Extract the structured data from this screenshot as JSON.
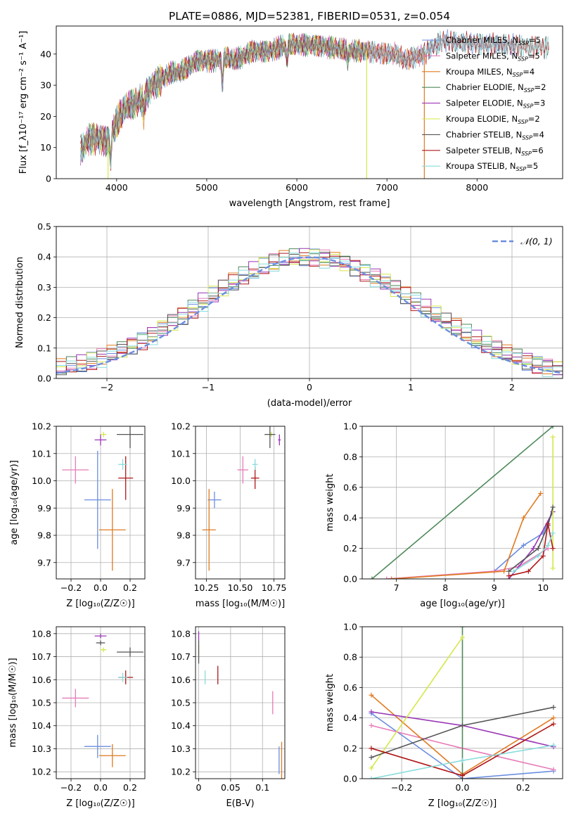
{
  "title": "PLATE=0886, MJD=52381, FIBERID=0531, z=0.054",
  "colors": [
    "#6b8ee0",
    "#e87bb8",
    "#e07a20",
    "#4f8a5b",
    "#9a36b5",
    "#d4e84a",
    "#555555",
    "#b01818",
    "#88dcdc"
  ],
  "chart_data": [
    {
      "id": "spectrum",
      "type": "line",
      "xlabel": "wavelength [Angstrom, rest frame]",
      "ylabel": "Flux [f_λ10⁻¹⁷ erg cm⁻² s⁻¹ A⁻¹]",
      "xlim": [
        3330,
        8950
      ],
      "ylim": [
        0,
        49
      ],
      "xticks": [
        4000,
        5000,
        6000,
        7000,
        8000
      ],
      "yticks": [
        0,
        10,
        20,
        30,
        40
      ],
      "legend_position": "upper-right",
      "continuum_x": [
        3600,
        3700,
        3800,
        3900,
        4000,
        4100,
        4200,
        4300,
        4400,
        4500,
        4600,
        4700,
        4800,
        4900,
        5000,
        5100,
        5200,
        5300,
        5400,
        5500,
        5600,
        5700,
        5800,
        5900,
        6000,
        6200,
        6400,
        6600,
        6800,
        7000,
        7100,
        7200,
        7300,
        7400,
        7500,
        7600
      ],
      "continuum_y": [
        9,
        13,
        13,
        12,
        18,
        23,
        24,
        26,
        30,
        32,
        34,
        34,
        36,
        38,
        38,
        38,
        39,
        38,
        39,
        41,
        41,
        41,
        42,
        43,
        43,
        43,
        42,
        41,
        41,
        40,
        40,
        38,
        39,
        40,
        42,
        44
      ],
      "absorption_dips": [
        {
          "x": 3933,
          "depth": 8
        },
        {
          "x": 4300,
          "depth": 5
        },
        {
          "x": 5175,
          "depth": 8
        },
        {
          "x": 5890,
          "depth": 5
        },
        {
          "x": 6563,
          "depth": 3
        }
      ],
      "drop_lines": [
        {
          "x": 3905,
          "series": "Kroupa ELODIE, N_SSP=2",
          "color": "#d4e84a"
        },
        {
          "x": 6775,
          "series": "Kroupa ELODIE, N_SSP=2",
          "color": "#d4e84a"
        },
        {
          "x": 7415,
          "series": "Kroupa MILES, N_SSP=4",
          "color": "#e07a20"
        }
      ],
      "series": [
        {
          "name": "Chabrier MILES, N_SSP=5",
          "color": "#6b8ee0",
          "xmax": 8450
        },
        {
          "name": "Salpeter MILES, N_SSP=5",
          "color": "#e87bb8",
          "xmax": 7400
        },
        {
          "name": "Kroupa MILES, N_SSP=4",
          "color": "#e07a20",
          "xmax": 7400
        },
        {
          "name": "Chabrier ELODIE, N_SSP=2",
          "color": "#4f8a5b",
          "xmax": 6780
        },
        {
          "name": "Salpeter ELODIE, N_SSP=3",
          "color": "#9a36b5",
          "xmax": 6780
        },
        {
          "name": "Kroupa ELODIE, N_SSP=2",
          "color": "#d4e84a",
          "xmax": 6780
        },
        {
          "name": "Chabrier STELIB, N_SSP=4",
          "color": "#555555",
          "xmax": 8800
        },
        {
          "name": "Salpeter STELIB, N_SSP=6",
          "color": "#b01818",
          "xmax": 8800
        },
        {
          "name": "Kroupa STELIB, N_SSP=5",
          "color": "#88dcdc",
          "xmax": 8800
        }
      ]
    },
    {
      "id": "residuals",
      "type": "line",
      "xlabel": "(data-model)/error",
      "ylabel": "Normed distribution",
      "xlim": [
        -2.5,
        2.5
      ],
      "ylim": [
        0,
        0.5
      ],
      "xticks": [
        -2,
        -1,
        0,
        1,
        2
      ],
      "yticks": [
        0.0,
        0.1,
        0.2,
        0.3,
        0.4,
        0.5
      ],
      "grid": true,
      "legend_position": "upper-right",
      "legend": "𝒩(0, 1)",
      "gauss_color": "#6b8ee0",
      "bin_width": 0.1,
      "hist_series_colors": [
        "#6b8ee0",
        "#e87bb8",
        "#e07a20",
        "#4f8a5b",
        "#9a36b5",
        "#d4e84a",
        "#555555",
        "#b01818",
        "#88dcdc"
      ]
    },
    {
      "id": "age-vs-Z",
      "type": "scatter",
      "xlabel": "Z [log₁₀(Z/Z☉)]",
      "ylabel": "age  [log₁₀(age/yr)]",
      "xlim": [
        -0.3,
        0.3
      ],
      "ylim": [
        9.64,
        10.2
      ],
      "xticks": [
        -0.2,
        0.0,
        0.2
      ],
      "yticks": [
        9.7,
        9.8,
        9.9,
        10.0,
        10.1,
        10.2
      ],
      "grid": true,
      "points": [
        {
          "x": -0.02,
          "y": 9.93,
          "xerr": 0.09,
          "yerr": 0.18,
          "color": "#6b8ee0"
        },
        {
          "x": -0.17,
          "y": 10.04,
          "xerr": 0.09,
          "yerr": 0.05,
          "color": "#e87bb8"
        },
        {
          "x": 0.08,
          "y": 9.82,
          "xerr": 0.09,
          "yerr": 0.15,
          "color": "#e07a20"
        },
        {
          "x": 0.0,
          "y": 10.15,
          "xerr": 0.04,
          "yerr": 0.02,
          "color": "#9a36b5"
        },
        {
          "x": 0.02,
          "y": 10.17,
          "xerr": 0.02,
          "yerr": 0.01,
          "color": "#d4e84a"
        },
        {
          "x": 0.2,
          "y": 10.17,
          "xerr": 0.09,
          "yerr": 0.05,
          "color": "#555555"
        },
        {
          "x": 0.17,
          "y": 10.01,
          "xerr": 0.05,
          "yerr": 0.08,
          "color": "#b01818"
        },
        {
          "x": 0.15,
          "y": 10.06,
          "xerr": 0.03,
          "yerr": 0.02,
          "color": "#88dcdc"
        }
      ]
    },
    {
      "id": "age-vs-mass",
      "type": "scatter",
      "xlabel": "mass [log₁₀(M/M☉)]",
      "ylabel": "",
      "xlim": [
        10.17,
        10.83
      ],
      "ylim": [
        9.64,
        10.2
      ],
      "xticks": [
        10.25,
        10.5,
        10.75
      ],
      "yticks": [
        9.7,
        9.8,
        9.9,
        10.0,
        10.1,
        10.2
      ],
      "grid": true,
      "points": [
        {
          "x": 10.31,
          "y": 9.93,
          "xerr": 0.05,
          "yerr": 0.03,
          "color": "#6b8ee0"
        },
        {
          "x": 10.52,
          "y": 10.04,
          "xerr": 0.04,
          "yerr": 0.05,
          "color": "#e87bb8"
        },
        {
          "x": 10.27,
          "y": 9.82,
          "xerr": 0.05,
          "yerr": 0.15,
          "color": "#e07a20"
        },
        {
          "x": 10.79,
          "y": 10.15,
          "xerr": 0.01,
          "yerr": 0.02,
          "color": "#9a36b5"
        },
        {
          "x": 10.73,
          "y": 10.17,
          "xerr": 0.01,
          "yerr": 0.01,
          "color": "#d4e84a"
        },
        {
          "x": 10.72,
          "y": 10.17,
          "xerr": 0.04,
          "yerr": 0.05,
          "color": "#555555"
        },
        {
          "x": 10.61,
          "y": 10.01,
          "xerr": 0.03,
          "yerr": 0.04,
          "color": "#b01818"
        },
        {
          "x": 10.61,
          "y": 10.06,
          "xerr": 0.02,
          "yerr": 0.02,
          "color": "#88dcdc"
        }
      ]
    },
    {
      "id": "massweight-vs-age",
      "type": "line",
      "xlabel": "age  [log₁₀(age/yr)]",
      "ylabel": "mass weight",
      "xlim": [
        6.3,
        10.4
      ],
      "ylim": [
        0.0,
        1.0
      ],
      "xticks": [
        7,
        8,
        9,
        10
      ],
      "yticks": [
        0.0,
        0.2,
        0.4,
        0.6,
        0.8,
        1.0
      ],
      "grid": true,
      "series": [
        {
          "color": "#6b8ee0",
          "x": [
            9.0,
            9.6,
            10.0,
            10.2
          ],
          "y": [
            0.05,
            0.22,
            0.3,
            0.44
          ]
        },
        {
          "color": "#e87bb8",
          "x": [
            6.8,
            9.0,
            9.5,
            10.1
          ],
          "y": [
            0.0,
            0.05,
            0.08,
            0.2
          ]
        },
        {
          "color": "#e07a20",
          "x": [
            6.9,
            9.2,
            9.6,
            9.95
          ],
          "y": [
            0.0,
            0.05,
            0.4,
            0.56
          ]
        },
        {
          "color": "#4f8a5b",
          "x": [
            6.5,
            10.2
          ],
          "y": [
            0.0,
            1.0
          ]
        },
        {
          "color": "#9a36b5",
          "x": [
            9.3,
            9.8,
            10.2
          ],
          "y": [
            0.0,
            0.2,
            0.44
          ]
        },
        {
          "color": "#d4e84a",
          "x": [
            10.2,
            10.2
          ],
          "y": [
            0.07,
            0.93
          ]
        },
        {
          "color": "#555555",
          "x": [
            9.3,
            9.9,
            10.1,
            10.2
          ],
          "y": [
            0.05,
            0.2,
            0.35,
            0.47
          ]
        },
        {
          "color": "#b01818",
          "x": [
            9.3,
            9.7,
            10.0,
            10.1,
            10.2
          ],
          "y": [
            0.02,
            0.05,
            0.15,
            0.36,
            0.2
          ]
        },
        {
          "color": "#88dcdc",
          "x": [
            9.4,
            9.9,
            10.1,
            10.2
          ],
          "y": [
            0.05,
            0.15,
            0.22,
            0.3
          ]
        }
      ]
    },
    {
      "id": "mass-vs-Z",
      "type": "scatter",
      "xlabel": "Z [log₁₀(Z/Z☉)]",
      "ylabel": "mass [log₁₀(M/M☉)]",
      "xlim": [
        -0.3,
        0.3
      ],
      "ylim": [
        10.17,
        10.83
      ],
      "xticks": [
        -0.2,
        0.0,
        0.2
      ],
      "yticks": [
        10.2,
        10.3,
        10.4,
        10.5,
        10.6,
        10.7,
        10.8
      ],
      "grid": true,
      "points": [
        {
          "x": -0.02,
          "y": 10.31,
          "xerr": 0.09,
          "yerr": 0.05,
          "color": "#6b8ee0"
        },
        {
          "x": -0.17,
          "y": 10.52,
          "xerr": 0.09,
          "yerr": 0.04,
          "color": "#e87bb8"
        },
        {
          "x": 0.08,
          "y": 10.27,
          "xerr": 0.09,
          "yerr": 0.05,
          "color": "#e07a20"
        },
        {
          "x": 0.0,
          "y": 10.79,
          "xerr": 0.04,
          "yerr": 0.01,
          "color": "#9a36b5"
        },
        {
          "x": 0.02,
          "y": 10.73,
          "xerr": 0.02,
          "yerr": 0.01,
          "color": "#d4e84a"
        },
        {
          "x": 0.0,
          "y": 10.76,
          "xerr": 0.03,
          "yerr": 0.01,
          "color": "#555555"
        },
        {
          "x": 0.2,
          "y": 10.72,
          "xerr": 0.09,
          "yerr": 0.02,
          "color": "#555555"
        },
        {
          "x": 0.17,
          "y": 10.61,
          "xerr": 0.05,
          "yerr": 0.03,
          "color": "#b01818"
        },
        {
          "x": 0.15,
          "y": 10.61,
          "xerr": 0.03,
          "yerr": 0.02,
          "color": "#88dcdc"
        }
      ]
    },
    {
      "id": "mass-vs-ebv",
      "type": "scatter",
      "xlabel": "E(B-V)",
      "ylabel": "",
      "xlim": [
        -0.005,
        0.135
      ],
      "ylim": [
        10.17,
        10.83
      ],
      "xticks": [
        0.0,
        0.05,
        0.1
      ],
      "yticks": [
        10.2,
        10.3,
        10.4,
        10.5,
        10.6,
        10.7,
        10.8
      ],
      "grid": true,
      "points": [
        {
          "x": 0.126,
          "y": 10.25,
          "xerr": 0,
          "yerr": 0.06,
          "color": "#6b8ee0"
        },
        {
          "x": 0.116,
          "y": 10.5,
          "xerr": 0,
          "yerr": 0.05,
          "color": "#e87bb8"
        },
        {
          "x": 0.13,
          "y": 10.25,
          "xerr": 0,
          "yerr": 0.08,
          "color": "#e07a20"
        },
        {
          "x": 0.0,
          "y": 10.79,
          "xerr": 0,
          "yerr": 0.02,
          "color": "#9a36b5"
        },
        {
          "x": 0.0,
          "y": 10.73,
          "xerr": 0,
          "yerr": 0.02,
          "color": "#d4e84a"
        },
        {
          "x": 0.0,
          "y": 10.72,
          "xerr": 0,
          "yerr": 0.05,
          "color": "#555555"
        },
        {
          "x": 0.03,
          "y": 10.62,
          "xerr": 0,
          "yerr": 0.04,
          "color": "#b01818"
        },
        {
          "x": 0.01,
          "y": 10.61,
          "xerr": 0,
          "yerr": 0.03,
          "color": "#88dcdc"
        }
      ]
    },
    {
      "id": "massweight-vs-Z",
      "type": "line",
      "xlabel": "Z [log₁₀(Z/Z☉)]",
      "ylabel": "mass weight",
      "xlim": [
        -0.33,
        0.33
      ],
      "ylim": [
        0.0,
        1.0
      ],
      "xticks": [
        -0.2,
        0.0,
        0.2
      ],
      "yticks": [
        0.0,
        0.2,
        0.4,
        0.6,
        0.8,
        1.0
      ],
      "grid": true,
      "series": [
        {
          "color": "#6b8ee0",
          "x": [
            -0.3,
            0.0,
            0.3
          ],
          "y": [
            0.43,
            0.0,
            0.05
          ]
        },
        {
          "color": "#e87bb8",
          "x": [
            -0.3,
            0.0,
            0.3
          ],
          "y": [
            0.35,
            0.2,
            0.06
          ]
        },
        {
          "color": "#e07a20",
          "x": [
            -0.3,
            0.0,
            0.3
          ],
          "y": [
            0.55,
            0.03,
            0.4
          ]
        },
        {
          "color": "#4f8a5b",
          "x": [
            0.0,
            0.0
          ],
          "y": [
            0.0,
            1.0
          ]
        },
        {
          "color": "#9a36b5",
          "x": [
            -0.3,
            0.0,
            0.3
          ],
          "y": [
            0.44,
            0.35,
            0.21
          ]
        },
        {
          "color": "#d4e84a",
          "x": [
            -0.3,
            0.0
          ],
          "y": [
            0.07,
            0.93
          ]
        },
        {
          "color": "#555555",
          "x": [
            -0.3,
            0.0,
            0.3
          ],
          "y": [
            0.14,
            0.35,
            0.47
          ]
        },
        {
          "color": "#b01818",
          "x": [
            -0.3,
            0.0,
            0.3
          ],
          "y": [
            0.2,
            0.02,
            0.36
          ]
        },
        {
          "color": "#88dcdc",
          "x": [
            -0.3,
            0.0,
            0.3
          ],
          "y": [
            0.0,
            0.12,
            0.22
          ]
        }
      ]
    }
  ]
}
